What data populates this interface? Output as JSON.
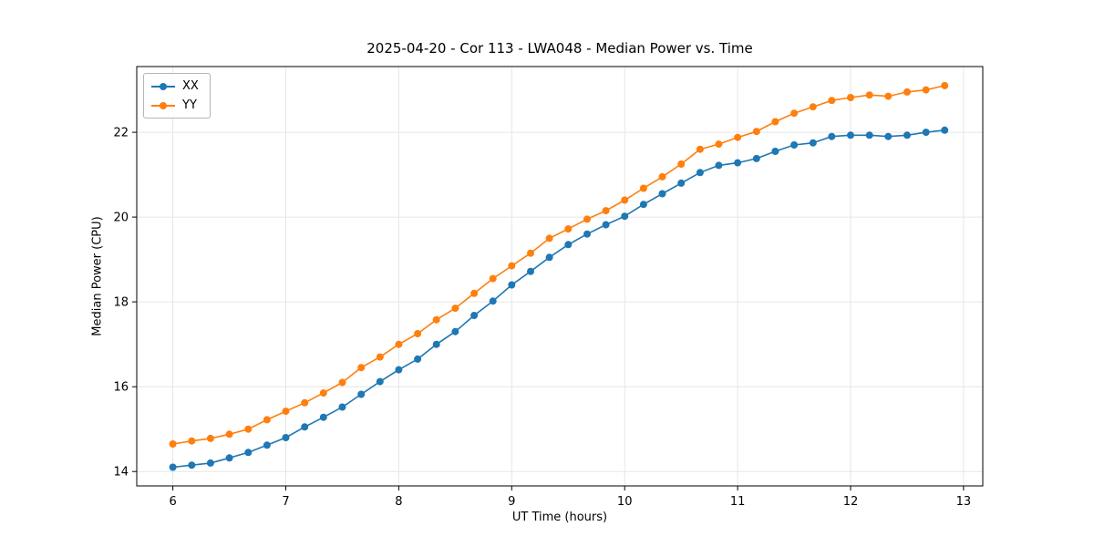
{
  "chart_data": {
    "type": "line",
    "title": "2025-04-20 - Cor 113 - LWA048 - Median Power vs. Time",
    "xlabel": "UT Time (hours)",
    "ylabel": "Median Power (CPU)",
    "xlim": [
      5.68,
      13.17
    ],
    "ylim": [
      13.66,
      23.55
    ],
    "xticks": [
      6,
      7,
      8,
      9,
      10,
      11,
      12,
      13
    ],
    "yticks": [
      14,
      16,
      18,
      20,
      22
    ],
    "grid": true,
    "legend_position": "upper left",
    "x": [
      6.0,
      6.167,
      6.333,
      6.5,
      6.667,
      6.833,
      7.0,
      7.167,
      7.333,
      7.5,
      7.667,
      7.833,
      8.0,
      8.167,
      8.333,
      8.5,
      8.667,
      8.833,
      9.0,
      9.167,
      9.333,
      9.5,
      9.667,
      9.833,
      10.0,
      10.167,
      10.333,
      10.5,
      10.667,
      10.833,
      11.0,
      11.167,
      11.333,
      11.5,
      11.667,
      11.833,
      12.0,
      12.167,
      12.333,
      12.5,
      12.667,
      12.833
    ],
    "series": [
      {
        "name": "XX",
        "color": "#1f77b4",
        "values": [
          14.1,
          14.15,
          14.2,
          14.32,
          14.45,
          14.62,
          14.8,
          15.05,
          15.28,
          15.52,
          15.82,
          16.12,
          16.4,
          16.65,
          17.0,
          17.3,
          17.68,
          18.02,
          18.4,
          18.72,
          19.05,
          19.35,
          19.6,
          19.82,
          20.02,
          20.3,
          20.55,
          20.8,
          21.05,
          21.22,
          21.28,
          21.38,
          21.55,
          21.7,
          21.75,
          21.9,
          21.93,
          21.93,
          21.9,
          21.93,
          22.0,
          22.05
        ]
      },
      {
        "name": "YY",
        "color": "#ff7f0e",
        "values": [
          14.65,
          14.72,
          14.78,
          14.88,
          15.0,
          15.22,
          15.42,
          15.62,
          15.85,
          16.1,
          16.45,
          16.7,
          17.0,
          17.25,
          17.58,
          17.85,
          18.2,
          18.55,
          18.85,
          19.15,
          19.5,
          19.72,
          19.95,
          20.15,
          20.4,
          20.68,
          20.95,
          21.25,
          21.6,
          21.72,
          21.88,
          22.02,
          22.25,
          22.45,
          22.6,
          22.75,
          22.82,
          22.88,
          22.85,
          22.95,
          23.0,
          23.1
        ]
      }
    ],
    "colors": {
      "grid": "#e6e6e6",
      "axis": "#000000",
      "background": "#ffffff"
    }
  }
}
